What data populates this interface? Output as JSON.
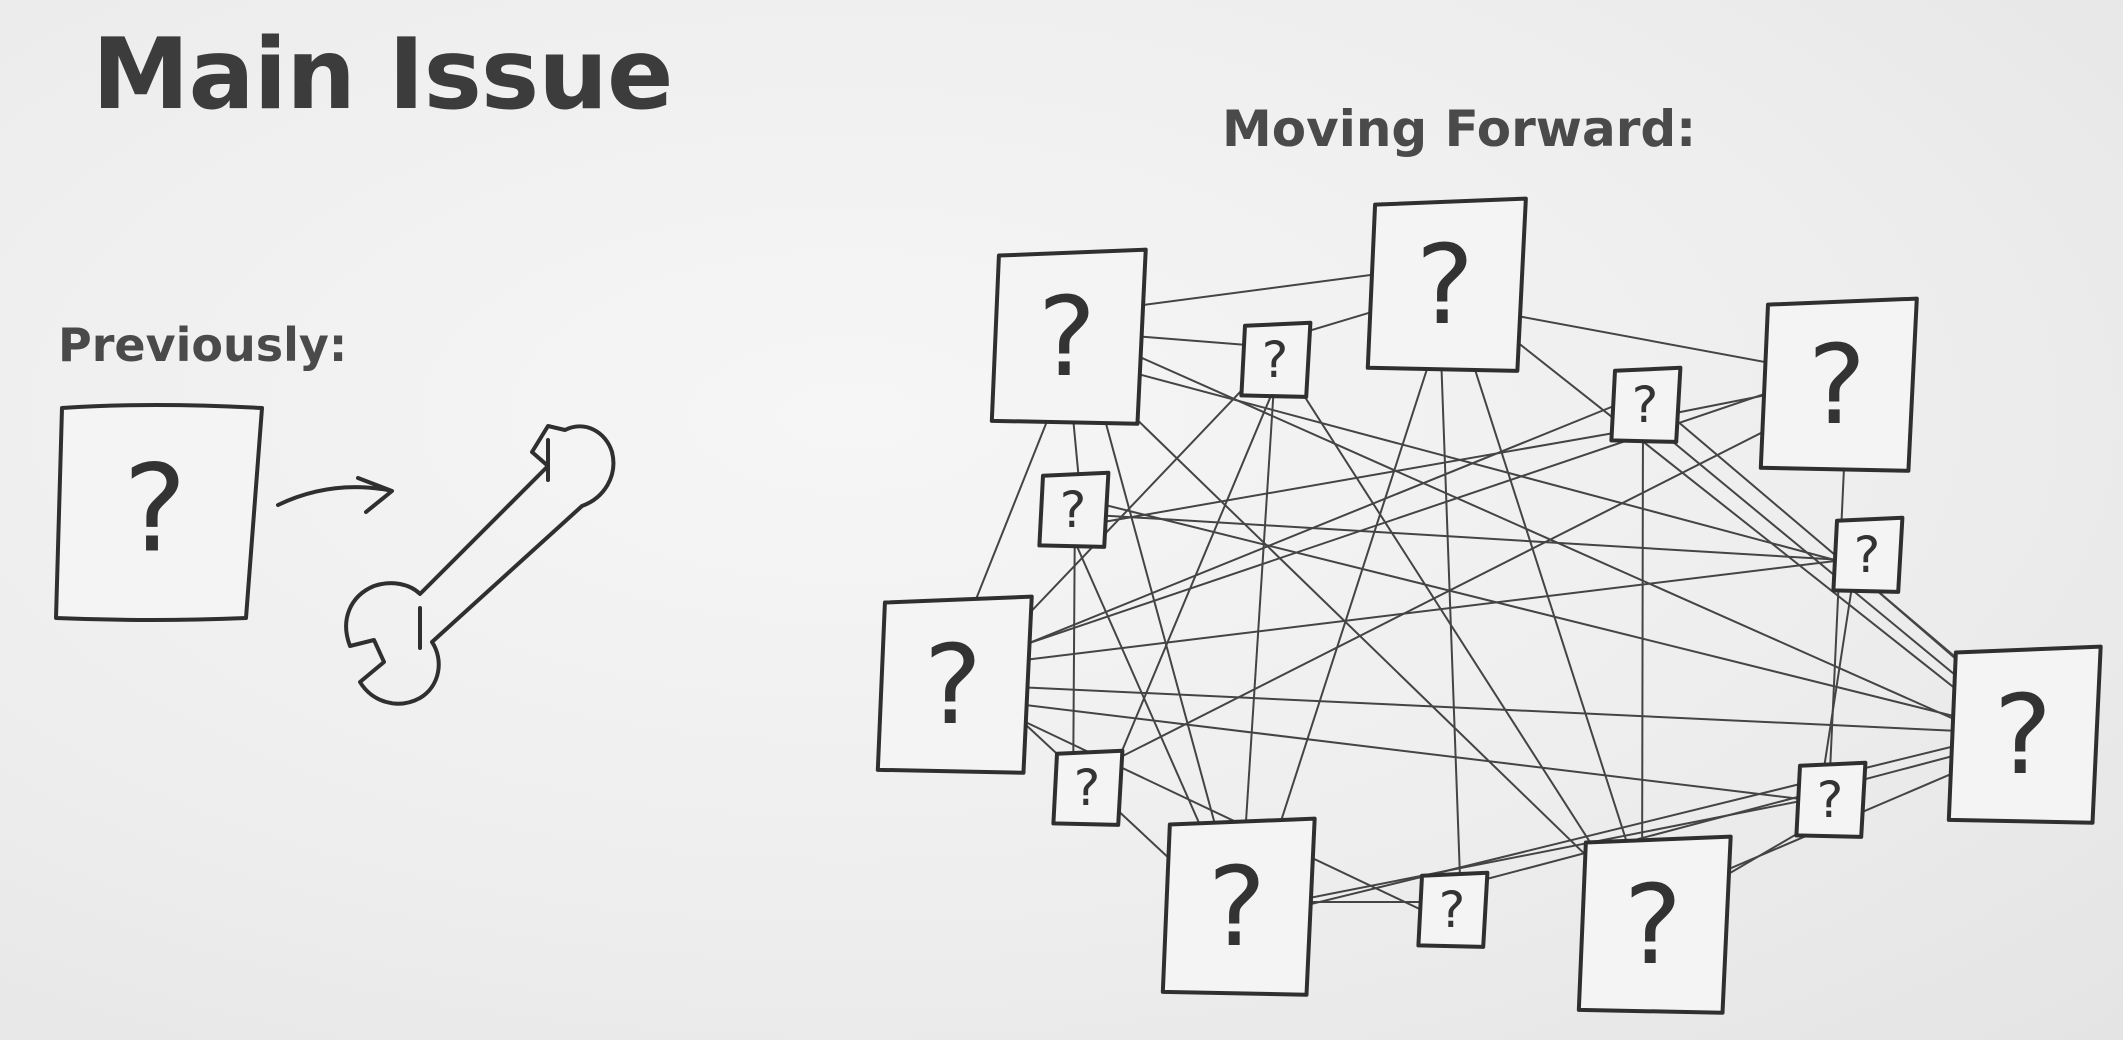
{
  "title": "Main Issue",
  "previously_label": "Previously:",
  "moving_forward_label": "Moving Forward:",
  "box_symbol": "?",
  "icons": {
    "arrow": "arrow-right-icon",
    "tool": "wrench-icon"
  }
}
